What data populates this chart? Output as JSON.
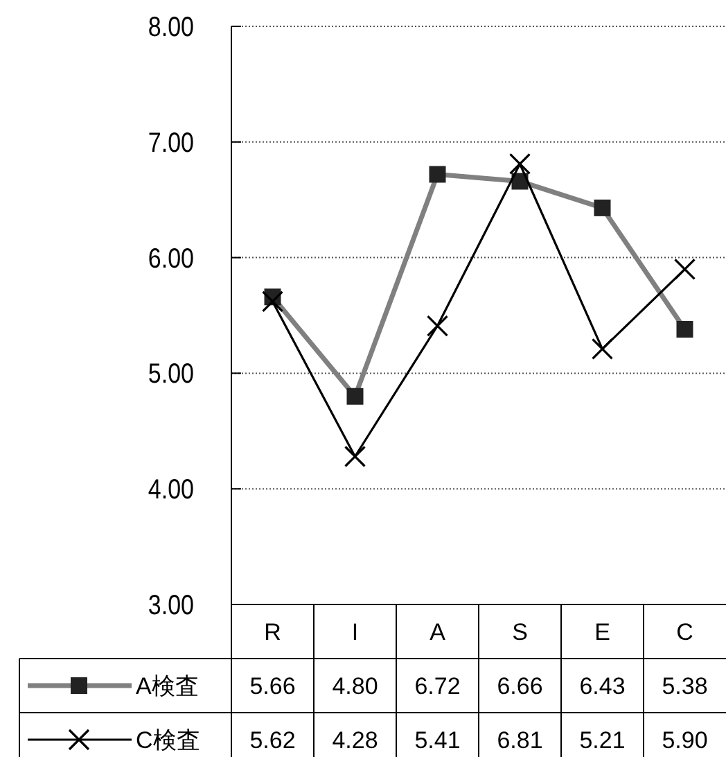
{
  "chart_data": {
    "type": "line",
    "categories": [
      "R",
      "I",
      "A",
      "S",
      "E",
      "C"
    ],
    "series": [
      {
        "name": "A検査",
        "color": "#808080",
        "marker": "square",
        "values": [
          5.66,
          4.8,
          6.72,
          6.66,
          6.43,
          5.38
        ],
        "value_labels": [
          "5.66",
          "4.80",
          "6.72",
          "6.66",
          "6.43",
          "5.38"
        ]
      },
      {
        "name": "C検査",
        "color": "#000000",
        "marker": "cross",
        "values": [
          5.62,
          4.28,
          5.41,
          6.81,
          5.21,
          5.9
        ],
        "value_labels": [
          "5.62",
          "4.28",
          "5.41",
          "6.81",
          "5.21",
          "5.90"
        ]
      }
    ],
    "ylim": [
      3,
      8
    ],
    "yticks": [
      {
        "value": 3,
        "label": "3.00"
      },
      {
        "value": 4,
        "label": "4.00"
      },
      {
        "value": 5,
        "label": "5.00"
      },
      {
        "value": 6,
        "label": "6.00"
      },
      {
        "value": 7,
        "label": "7.00"
      },
      {
        "value": 8,
        "label": "8.00"
      }
    ],
    "grid": "y",
    "legend": "bottom"
  }
}
